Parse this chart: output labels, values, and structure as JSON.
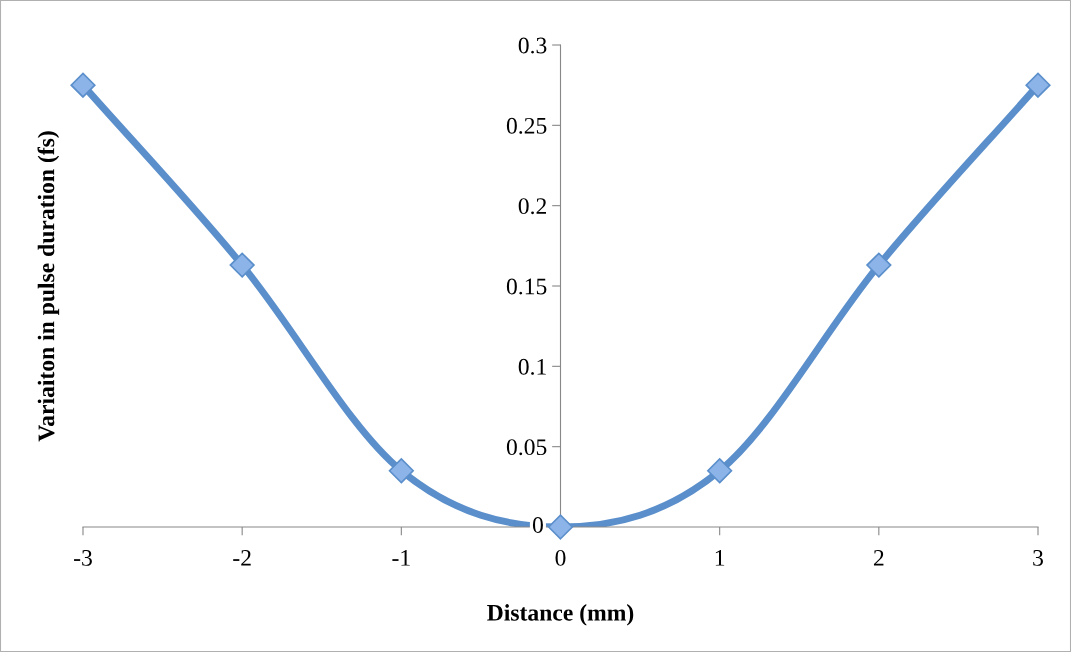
{
  "chart_data": {
    "type": "line",
    "xlabel": "Distance (mm)",
    "ylabel": "Variaiton in pulse duration (fs)",
    "x": [
      -3,
      -2,
      -1,
      0,
      1,
      2,
      3
    ],
    "series": [
      {
        "color": "#5b8fcb",
        "values": [
          0.275,
          0.163,
          0.035,
          0,
          0.035,
          0.163,
          0.275
        ]
      }
    ],
    "xlim": [
      -3,
      3
    ],
    "xticks": [
      -3,
      -2,
      -1,
      0,
      1,
      2,
      3
    ],
    "ylim": [
      0,
      0.3
    ],
    "yticks": [
      0,
      0.05,
      0.1,
      0.15,
      0.2,
      0.25,
      0.3
    ],
    "marker": "diamond",
    "line_style": "solid",
    "grid": false,
    "legend": false
  }
}
